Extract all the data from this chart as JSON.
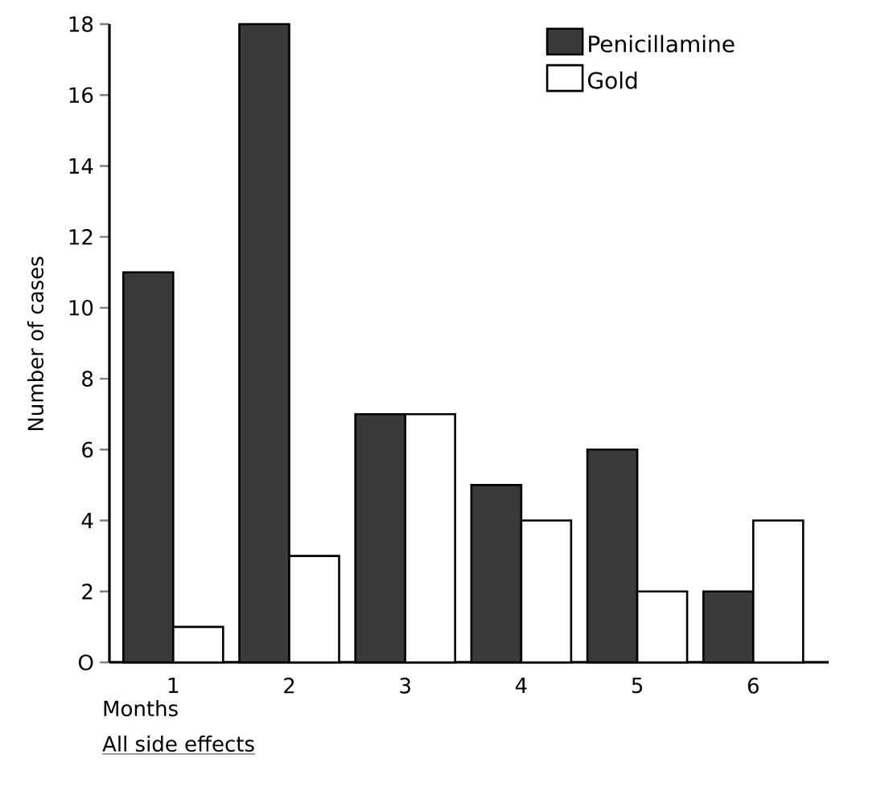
{
  "chart_data": {
    "type": "bar",
    "xlabel": "Months",
    "ylabel": "Number of cases",
    "categories": [
      "1",
      "2",
      "3",
      "4",
      "5",
      "6"
    ],
    "series": [
      {
        "name": "Penicillamine",
        "color": "#3a3a3a",
        "values": [
          11,
          18,
          7,
          5,
          6,
          2
        ]
      },
      {
        "name": "Gold",
        "color": "#ffffff",
        "values": [
          1,
          3,
          7,
          4,
          2,
          4
        ]
      }
    ],
    "ylim": [
      0,
      18
    ],
    "yticks": [
      {
        "value": 0,
        "label": "O"
      },
      2,
      4,
      6,
      8,
      10,
      12,
      14,
      16,
      18
    ],
    "legend": "top right",
    "grid": false,
    "annotations": [
      "All side effects"
    ]
  }
}
